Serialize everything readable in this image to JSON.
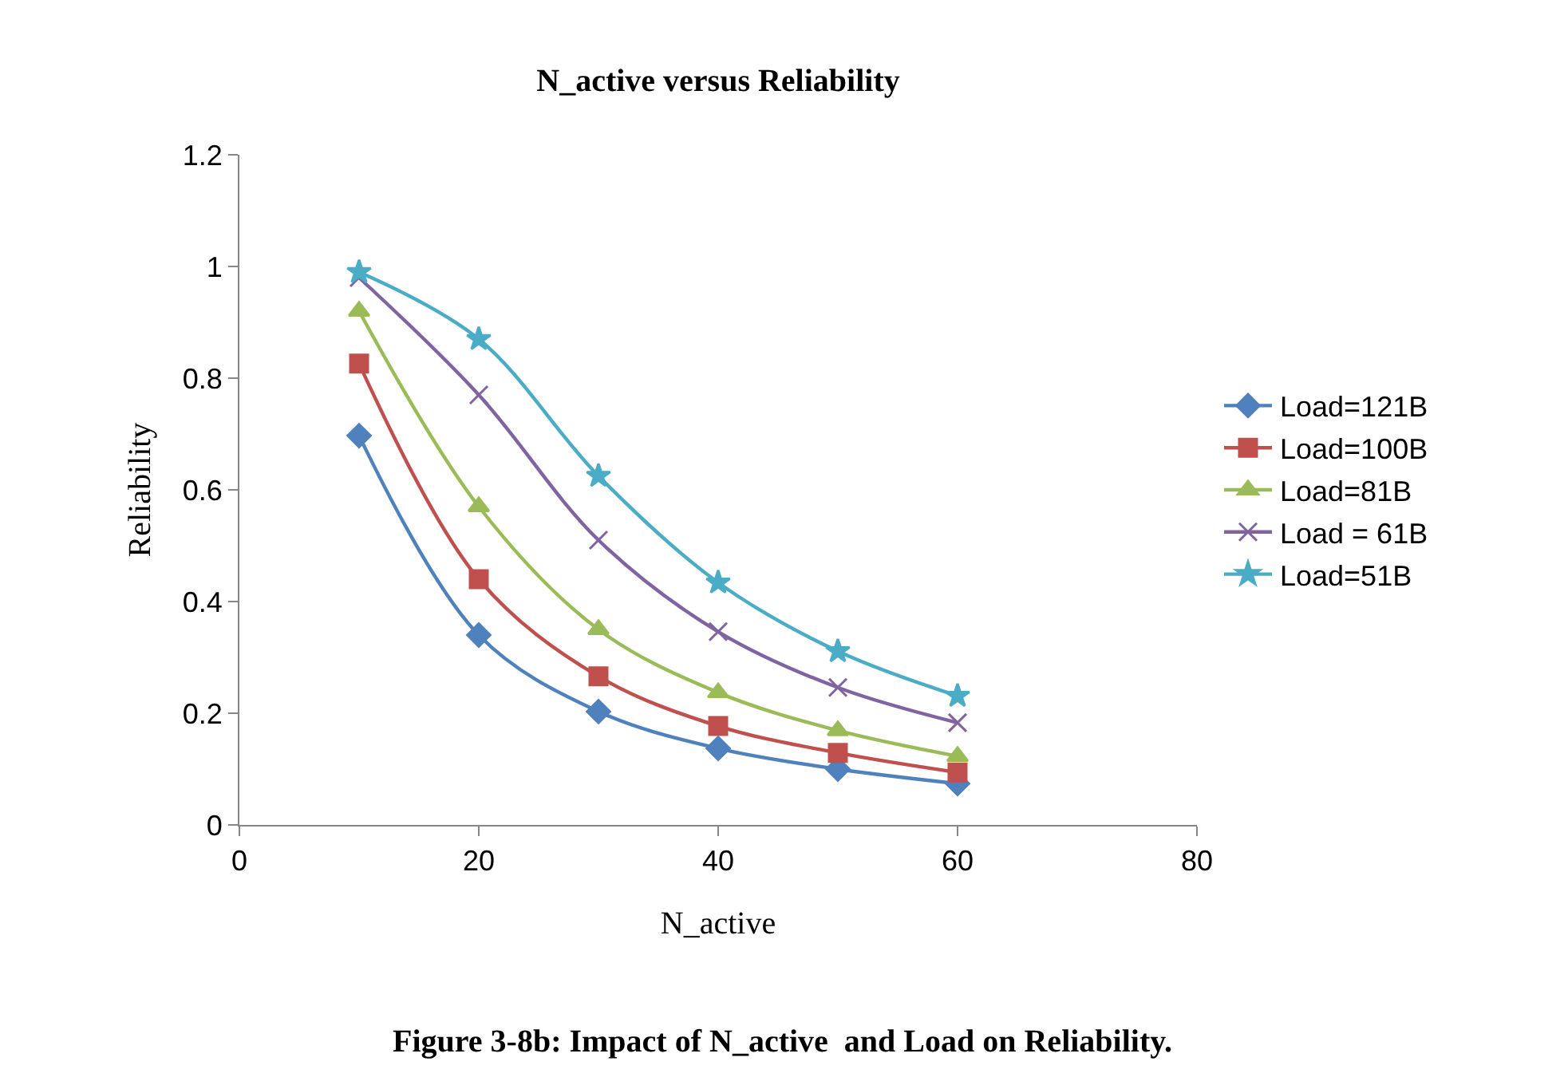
{
  "chart_data": {
    "type": "line",
    "title": "N_active versus Reliability",
    "xlabel": "N_active",
    "ylabel": "Reliability",
    "x": [
      10,
      20,
      30,
      40,
      50,
      60
    ],
    "series": [
      {
        "name": "Load=121B",
        "color": "#4f81bd",
        "marker": "diamond",
        "values": [
          0.697,
          0.34,
          0.203,
          0.137,
          0.1,
          0.074
        ]
      },
      {
        "name": "Load=100B",
        "color": "#c0504d",
        "marker": "square",
        "values": [
          0.826,
          0.44,
          0.266,
          0.177,
          0.129,
          0.094
        ]
      },
      {
        "name": "Load=81B",
        "color": "#9bbb59",
        "marker": "triangle",
        "values": [
          0.92,
          0.57,
          0.35,
          0.237,
          0.169,
          0.123
        ]
      },
      {
        "name": "Load = 61B",
        "color": "#8064a2",
        "marker": "cross",
        "values": [
          0.98,
          0.77,
          0.51,
          0.346,
          0.246,
          0.183
        ]
      },
      {
        "name": "Load=51B",
        "color": "#4bacc6",
        "marker": "star",
        "values": [
          0.99,
          0.87,
          0.625,
          0.434,
          0.311,
          0.231
        ]
      }
    ],
    "xlim": [
      0,
      80
    ],
    "xticks": [
      0,
      20,
      40,
      60,
      80
    ],
    "ylim": [
      0,
      1.2
    ],
    "yticks": [
      0,
      0.2,
      0.4,
      0.6,
      0.8,
      1,
      1.2
    ],
    "legend": "right",
    "line_style": "solid",
    "annotations": [
      "Figure 3-8b: Impact of N_active  and Load on Reliability."
    ]
  }
}
